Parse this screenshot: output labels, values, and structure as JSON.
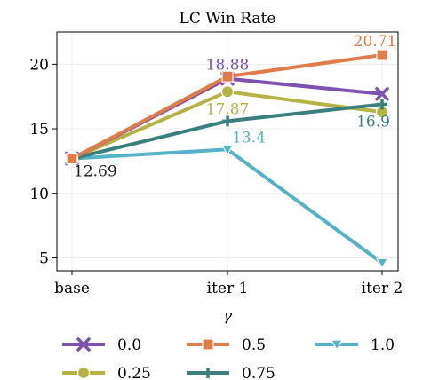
{
  "chart_data": {
    "type": "line",
    "title": "LC Win Rate",
    "xlabel": "",
    "ylabel": "",
    "categories": [
      "base",
      "iter 1",
      "iter 2"
    ],
    "yticks": [
      5,
      10,
      15,
      20
    ],
    "ylim": [
      4,
      22.5
    ],
    "grid": true,
    "legend": {
      "title": "γ",
      "placement": "bottom"
    },
    "series": [
      {
        "name": "0.0",
        "color": "#7b52ae",
        "marker": "x-icon",
        "values": [
          12.69,
          18.88,
          17.7
        ]
      },
      {
        "name": "0.25",
        "color": "#b5b345",
        "marker": "circle-icon",
        "values": [
          12.69,
          17.87,
          16.3
        ]
      },
      {
        "name": "0.5",
        "color": "#e07c4a",
        "marker": "square-icon",
        "values": [
          12.69,
          19.05,
          20.71
        ]
      },
      {
        "name": "0.75",
        "color": "#3a7f7d",
        "marker": "plus-icon",
        "values": [
          12.69,
          15.6,
          16.9
        ]
      },
      {
        "name": "1.0",
        "color": "#53b2c6",
        "marker": "triangle-down-icon",
        "values": [
          12.69,
          13.4,
          4.6
        ]
      }
    ],
    "annotations": [
      {
        "text": "12.69",
        "category": "base",
        "value": 12.69,
        "color": "#1a1a1a"
      },
      {
        "text": "18.88",
        "category": "iter 1",
        "value": 18.88,
        "color": "#7b52ae"
      },
      {
        "text": "17.87",
        "category": "iter 1",
        "value": 17.87,
        "color": "#b5b345"
      },
      {
        "text": "13.4",
        "category": "iter 1",
        "value": 13.4,
        "color": "#53b2c6"
      },
      {
        "text": "20.71",
        "category": "iter 2",
        "value": 20.71,
        "color": "#e07c4a"
      },
      {
        "text": "16.9",
        "category": "iter 2",
        "value": 16.9,
        "color": "#3a7f7d"
      }
    ]
  }
}
